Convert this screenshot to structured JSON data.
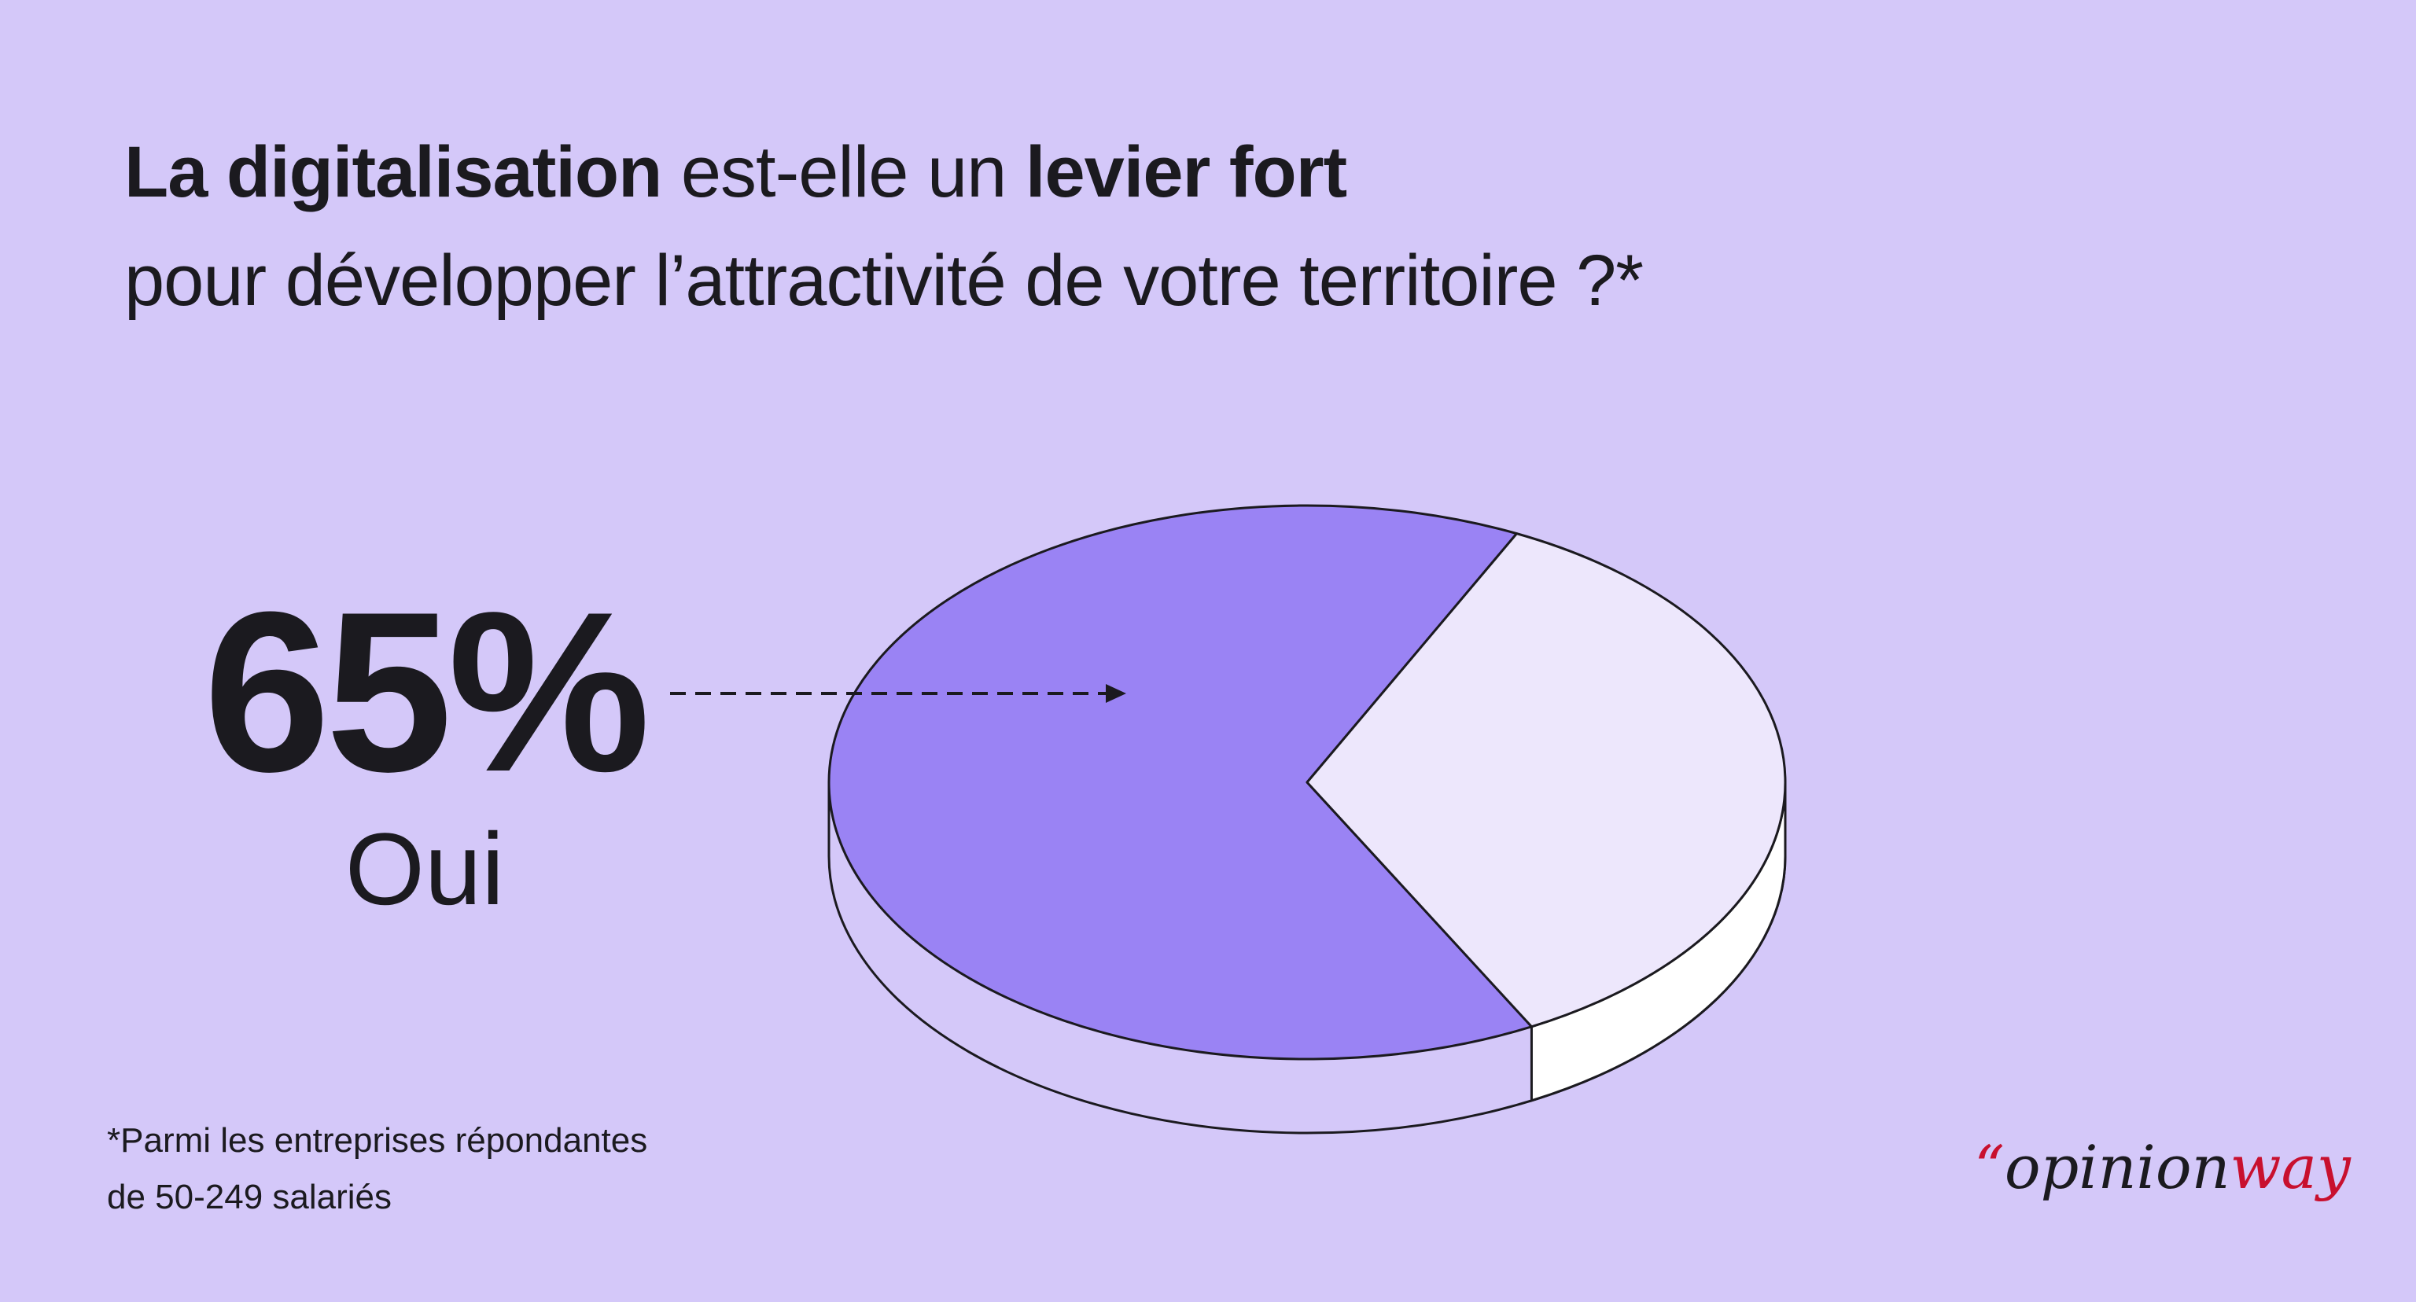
{
  "title": {
    "part1_bold": "La digitalisation",
    "part2": " est-elle un ",
    "part3_bold": "levier fort",
    "line2": "pour développer l’attractivité de votre territoire ?*"
  },
  "highlight": {
    "value": "65%",
    "label": "Oui"
  },
  "footnote": {
    "line1": "*Parmi les entreprises répondantes",
    "line2": "de 50-249 salariés"
  },
  "logo": {
    "quote": "“",
    "part1": "opinion",
    "part2": "way"
  },
  "colors": {
    "background": "#D4C8F9",
    "slice_yes": "#9A83F4",
    "slice_other": "#EDE7FC",
    "side": "#D4C8F9",
    "brand_red": "#C8102E",
    "text": "#1B1A1F"
  },
  "chart_data": {
    "type": "pie",
    "style": "3d",
    "categories": [
      "Oui",
      ""
    ],
    "values": [
      65,
      35
    ],
    "unit": "%"
  }
}
